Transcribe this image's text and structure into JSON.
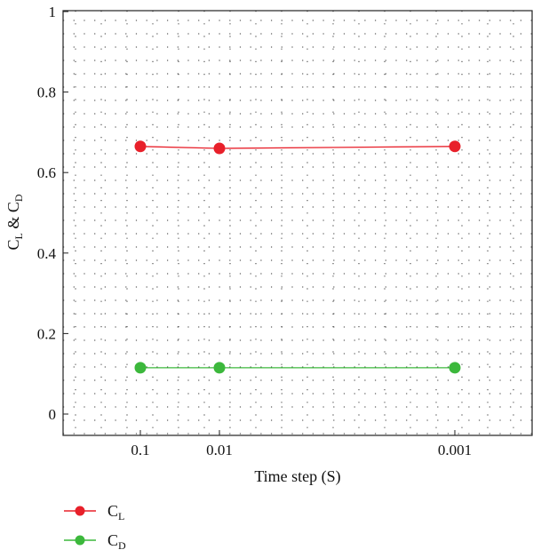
{
  "chart_data": {
    "type": "line",
    "title": "",
    "xlabel": "Time step (S)",
    "ylabel": {
      "base1": "C",
      "sub1": "L",
      "amp": " & ",
      "base2": "C",
      "sub2": "D"
    },
    "x_categories": [
      "0.1",
      "0.01",
      "0.001"
    ],
    "ylim": [
      0,
      1
    ],
    "y_ticks": [
      "0",
      "0.2",
      "0.4",
      "0.6",
      "0.8",
      "1"
    ],
    "y_tick_values": [
      0,
      0.2,
      0.4,
      0.6,
      0.8,
      1
    ],
    "grid": true,
    "legend_position": "bottom-left",
    "series": [
      {
        "name": "C_L",
        "label_base": "C",
        "label_sub": "L",
        "color": "#e8202a",
        "values": [
          0.665,
          0.66,
          0.665
        ]
      },
      {
        "name": "C_D",
        "label_base": "C",
        "label_sub": "D",
        "color": "#3cb83c",
        "values": [
          0.115,
          0.115,
          0.115
        ]
      }
    ]
  }
}
